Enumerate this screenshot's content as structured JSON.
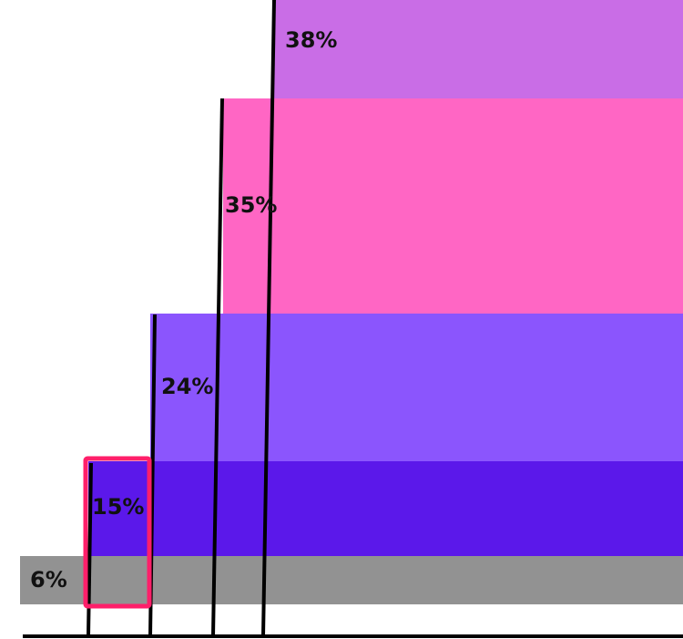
{
  "bands": [
    {
      "label": "6%"
    },
    {
      "label": "15%"
    },
    {
      "label": "24%"
    },
    {
      "label": "35%"
    },
    {
      "label": "38%"
    }
  ]
}
